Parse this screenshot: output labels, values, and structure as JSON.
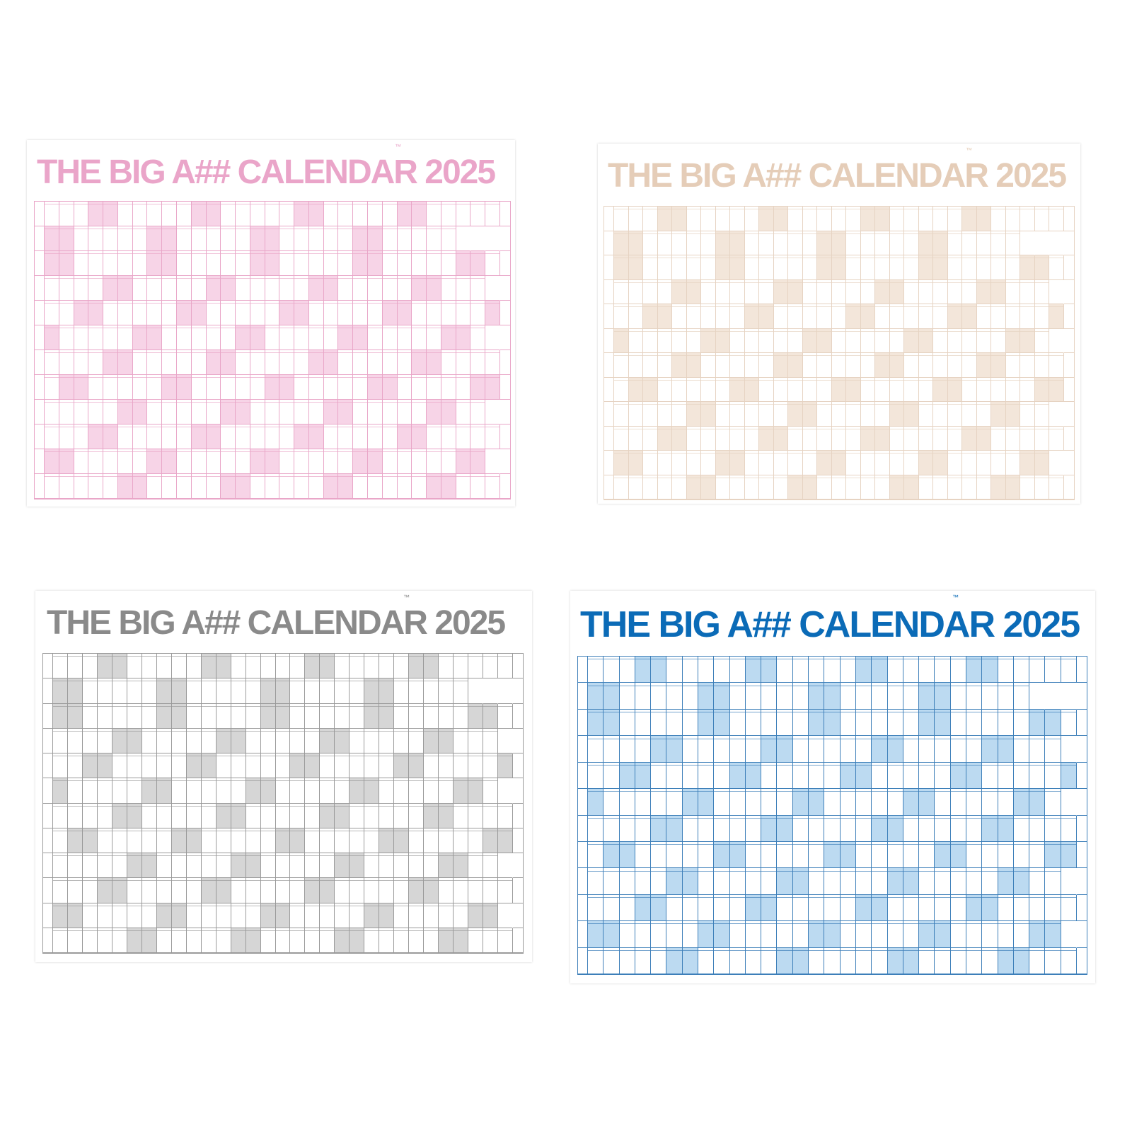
{
  "title": "THE BIG A## CALENDAR 2025",
  "trademark": "™",
  "year": 2025,
  "posters": [
    {
      "variant": "pink",
      "title_color": "#eaa5c9",
      "line_color": "#e9a6c8",
      "weekend_shade": "#f7d4e7"
    },
    {
      "variant": "beige",
      "title_color": "#e5cdb8",
      "line_color": "#e6d3c2",
      "weekend_shade": "#f3e6da"
    },
    {
      "variant": "grey",
      "title_color": "#8a8a8a",
      "line_color": "#9a9a9a",
      "weekend_shade": "#d6d6d6"
    },
    {
      "variant": "blue",
      "title_color": "#0b6bb7",
      "line_color": "#3d7fb9",
      "weekend_shade": "#bcdaf1"
    }
  ]
}
